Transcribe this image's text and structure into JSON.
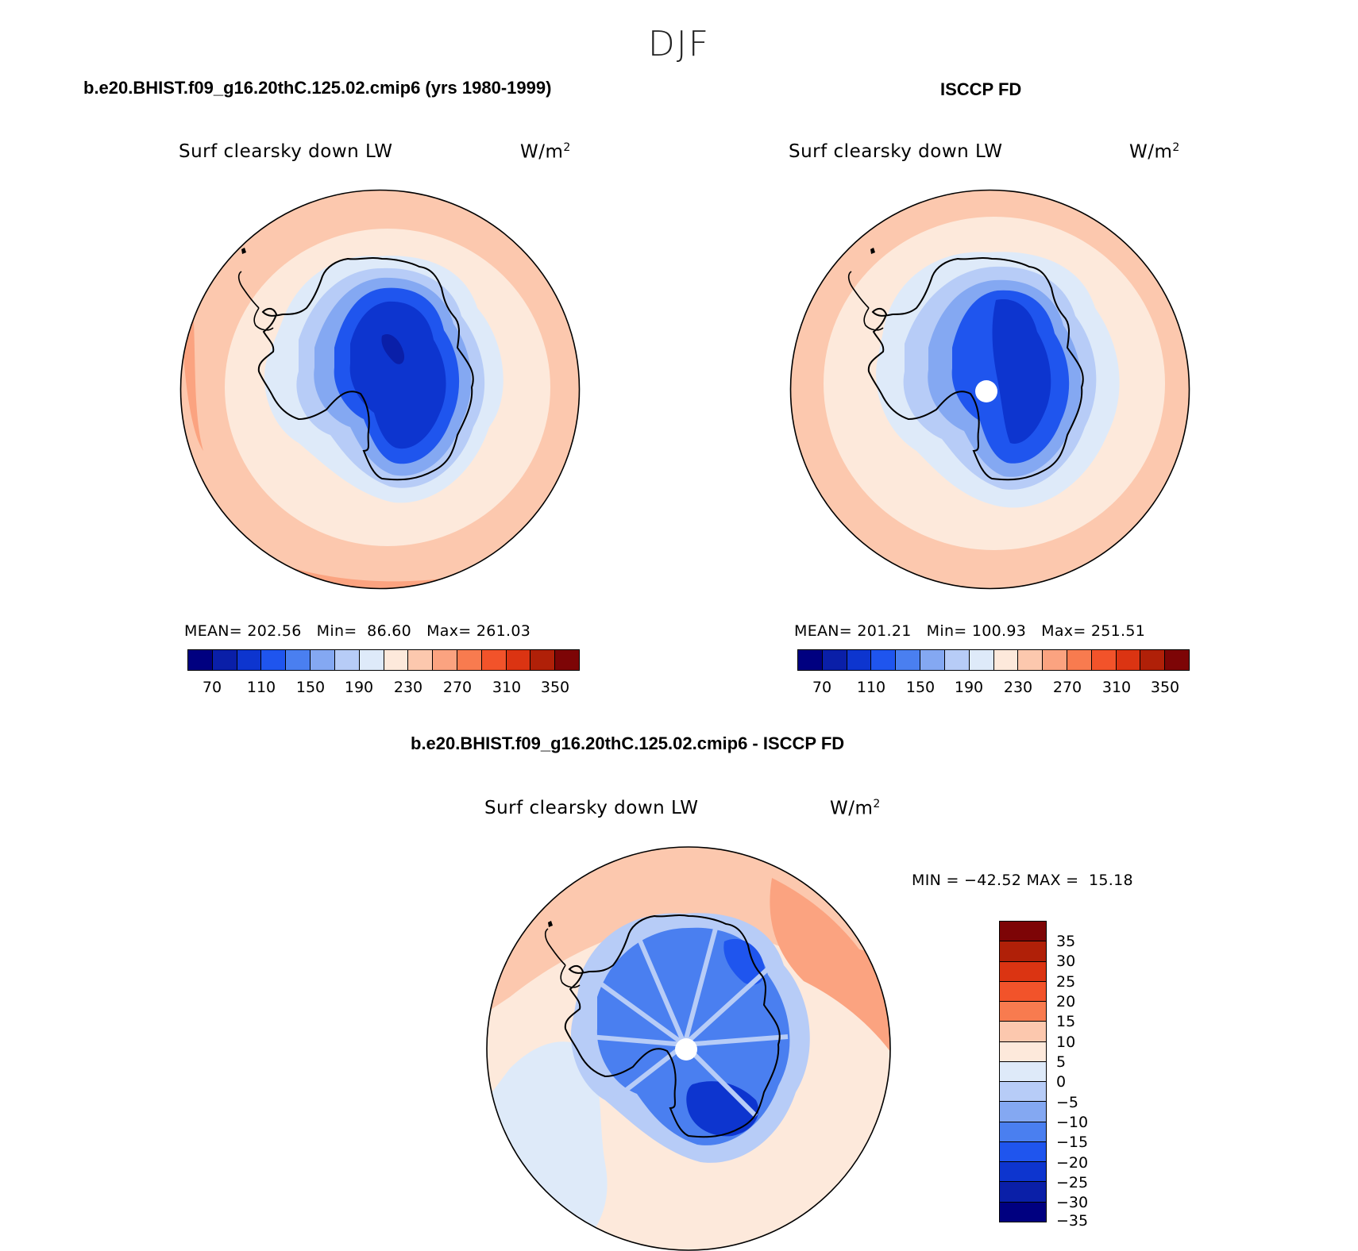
{
  "suptitle": "DJF",
  "panels": {
    "model": {
      "title": "b.e20.BHIST.f09_g16.20thC.125.02.cmip6 (yrs 1980-1999)",
      "variable": "Surf clearsky down LW",
      "units": "W/m",
      "units_sup": "2",
      "stats": "MEAN= 202.56   Min=  86.60   Max= 261.03"
    },
    "obs": {
      "title": "ISCCP FD",
      "variable": "Surf clearsky down LW",
      "units": "W/m",
      "units_sup": "2",
      "stats": "MEAN= 201.21   Min= 100.93   Max= 251.51"
    },
    "diff": {
      "title": "b.e20.BHIST.f09_g16.20thC.125.02.cmip6 - ISCCP FD",
      "variable": "Surf clearsky down LW",
      "units": "W/m",
      "units_sup": "2",
      "stats": "MIN = −42.52 MAX =  15.18"
    }
  },
  "colorbar_main": {
    "colors": [
      "#000080",
      "#0a1fa8",
      "#0d35cf",
      "#1f55ee",
      "#4a7ff0",
      "#84a8f2",
      "#b7ccf7",
      "#deeaf9",
      "#fde9db",
      "#fcc8ae",
      "#fba380",
      "#f87b4f",
      "#f2532a",
      "#db3412",
      "#b02008",
      "#7d0506"
    ],
    "tick_labels": [
      "70",
      "110",
      "150",
      "190",
      "230",
      "270",
      "310",
      "350"
    ]
  },
  "colorbar_diff": {
    "colors_top_to_bottom": [
      "#7d0506",
      "#b02008",
      "#db3412",
      "#f2532a",
      "#f87b4f",
      "#fcc8ae",
      "#fde9db",
      "#deeaf9",
      "#b7ccf7",
      "#84a8f2",
      "#4a7ff0",
      "#1f55ee",
      "#0d35cf",
      "#0a1fa8",
      "#000080"
    ],
    "tick_labels": [
      "35",
      "30",
      "25",
      "20",
      "15",
      "10",
      "5",
      "0",
      "−5",
      "−10",
      "−15",
      "−20",
      "−25",
      "−30",
      "−35"
    ]
  },
  "fill_colors": {
    "ocean_outer": "#fcc8ae",
    "ocean_inner": "#fde9db",
    "coast_warm": "#fba380",
    "ice_light": "#deeaf9",
    "ice_mid": "#b7ccf7",
    "ice_mid2": "#84a8f2",
    "ice_deep": "#1f55ee",
    "ice_deeper": "#0d35cf",
    "ice_core": "#0a1fa8"
  }
}
